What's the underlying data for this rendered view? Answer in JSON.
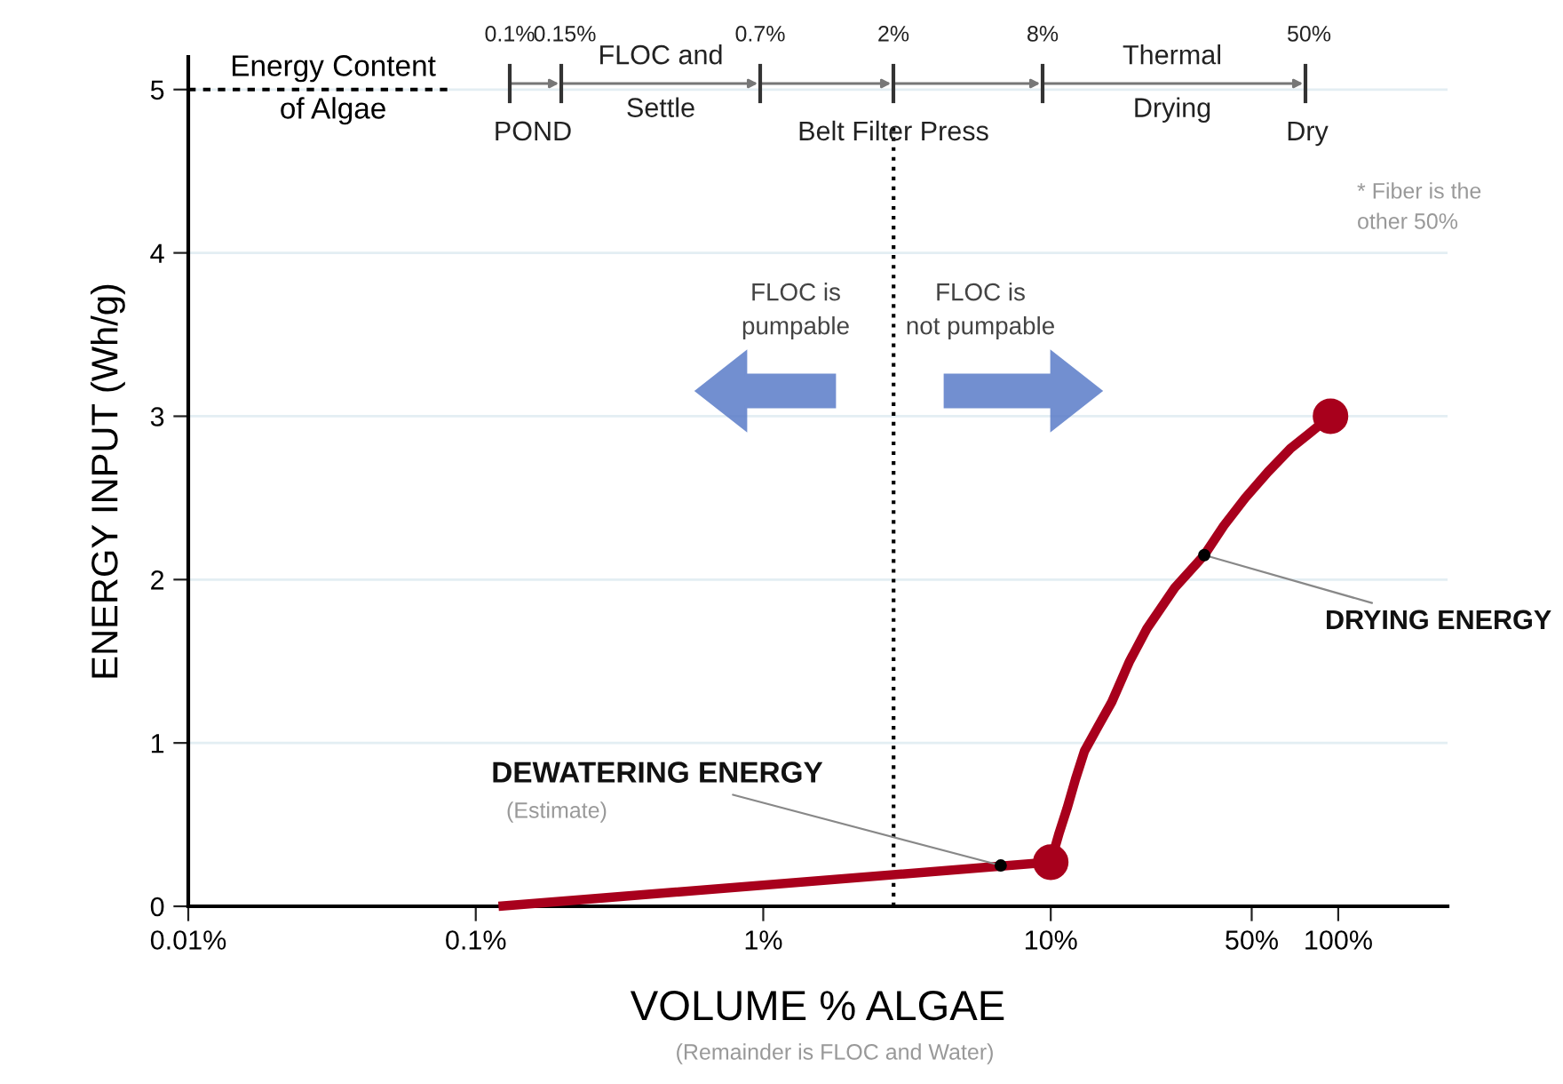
{
  "chart_data": {
    "type": "line",
    "xlabel": "VOLUME % ALGAE",
    "ylabel": "ENERGY INPUT (Wh/g)",
    "log": "x",
    "xlim": [
      0.01,
      240
    ],
    "xticks": [
      {
        "value": 0.01,
        "label": "0.01%"
      },
      {
        "value": 0.1,
        "label": "0.1%"
      },
      {
        "value": 1,
        "label": "1%"
      },
      {
        "value": 10,
        "label": "10%"
      },
      {
        "value": 50,
        "label": "50%"
      },
      {
        "value": 100,
        "label": "100%"
      }
    ],
    "ylim": [
      0,
      5.2
    ],
    "yticks": [
      0,
      1,
      2,
      3,
      4,
      5
    ],
    "grid": "y",
    "line_style": "solid",
    "series": [
      {
        "color": "#a8001c",
        "x": [
          0.12,
          10,
          10.7,
          11.4,
          12.2,
          13.1,
          14.6,
          16.3,
          18.8,
          21.6,
          27,
          34.2,
          40,
          47.5,
          57,
          68,
          80,
          94
        ],
        "values": [
          0,
          0.27,
          0.45,
          0.6,
          0.78,
          0.95,
          1.1,
          1.25,
          1.5,
          1.7,
          1.95,
          2.15,
          2.33,
          2.5,
          2.66,
          2.8,
          2.9,
          3.0
        ]
      },
      {
        "type": "scatter",
        "color": "#a8001c",
        "x": [
          10,
          94
        ],
        "values": [
          0.27,
          3.0
        ]
      }
    ],
    "ref_lines": [
      {
        "axis": "y",
        "value": 5,
        "label": "Energy Content\nof Algae",
        "line_style": "dashed",
        "color": "#000000"
      },
      {
        "axis": "x",
        "value": 2.84,
        "line_style": "dotted",
        "color": "#000000"
      }
    ],
    "annotations": [
      "0.1%",
      "0.15%",
      "0.7%",
      "2%",
      "8%",
      "50%",
      "POND",
      "FLOC and\nSettle",
      "Belt Filter Press",
      "Thermal\nDrying",
      "Dry",
      "* Fiber is the\nother 50%",
      "FLOC is\npumpable",
      "FLOC is\nnot pumpable",
      {
        "text": "DEWATERING ENERGY",
        "x": 6.7,
        "y": 0.25
      },
      "(Estimate)",
      {
        "text": "DRYING ENERGY",
        "x": 34.2,
        "y": 2.15
      },
      "(Remainder is FLOC and Water)"
    ]
  }
}
